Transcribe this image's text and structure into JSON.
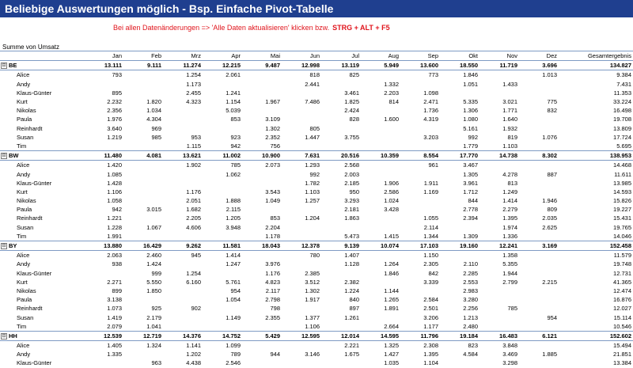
{
  "title": "Beliebige Auswertungen möglich - Bsp. Einfache Pivot-Tabelle",
  "notice": {
    "text": "Bei allen Datenänderungen => 'Alle Daten aktualisieren' klicken bzw.",
    "shortcut": "STRG + ALT + F5"
  },
  "pivot": {
    "value_label": "Summe von Umsatz",
    "columns": [
      "Jan",
      "Feb",
      "Mrz",
      "Apr",
      "Mai",
      "Jun",
      "Jul",
      "Aug",
      "Sep",
      "Okt",
      "Nov",
      "Dez",
      "Gesamtergebnis"
    ],
    "toggle_symbol": "⊟",
    "groups": [
      {
        "name": "BE",
        "totals": [
          "13.111",
          "9.111",
          "11.274",
          "12.215",
          "9.487",
          "12.998",
          "13.119",
          "5.949",
          "13.600",
          "18.550",
          "11.719",
          "3.696",
          "134.827"
        ],
        "rows": [
          {
            "name": "Alice",
            "values": [
              "793",
              "",
              "1.254",
              "2.061",
              "",
              "818",
              "825",
              "",
              "773",
              "1.846",
              "",
              "1.013",
              "9.384"
            ]
          },
          {
            "name": "Andy",
            "values": [
              "",
              "",
              "1.173",
              "",
              "",
              "2.441",
              "",
              "1.332",
              "",
              "1.051",
              "1.433",
              "",
              "7.431"
            ]
          },
          {
            "name": "Klaus-Günter",
            "values": [
              "895",
              "",
              "2.455",
              "1.241",
              "",
              "",
              "3.461",
              "2.203",
              "1.098",
              "",
              "",
              "",
              "11.353"
            ]
          },
          {
            "name": "Kurt",
            "values": [
              "2.232",
              "1.820",
              "4.323",
              "1.154",
              "1.967",
              "7.486",
              "1.825",
              "814",
              "2.471",
              "5.335",
              "3.021",
              "775",
              "33.224"
            ]
          },
          {
            "name": "Nikolas",
            "values": [
              "2.356",
              "1.034",
              "",
              "5.039",
              "",
              "",
              "2.424",
              "",
              "1.736",
              "1.306",
              "1.771",
              "832",
              "16.498"
            ]
          },
          {
            "name": "Paula",
            "values": [
              "1.976",
              "4.304",
              "",
              "853",
              "3.109",
              "",
              "828",
              "1.600",
              "4.319",
              "1.080",
              "1.640",
              "",
              "19.708"
            ]
          },
          {
            "name": "Reinhardt",
            "values": [
              "3.640",
              "969",
              "",
              "",
              "1.302",
              "805",
              "",
              "",
              "",
              "5.161",
              "1.932",
              "",
              "13.809"
            ]
          },
          {
            "name": "Susan",
            "values": [
              "1.219",
              "985",
              "953",
              "923",
              "2.352",
              "1.447",
              "3.755",
              "",
              "3.203",
              "992",
              "819",
              "1.076",
              "17.724"
            ]
          },
          {
            "name": "Tim",
            "values": [
              "",
              "",
              "1.115",
              "942",
              "756",
              "",
              "",
              "",
              "",
              "1.779",
              "1.103",
              "",
              "5.695"
            ]
          }
        ]
      },
      {
        "name": "BW",
        "totals": [
          "11.480",
          "4.081",
          "13.621",
          "11.002",
          "10.900",
          "7.631",
          "20.516",
          "10.359",
          "8.554",
          "17.770",
          "14.738",
          "8.302",
          "138.953"
        ],
        "rows": [
          {
            "name": "Alice",
            "values": [
              "1.420",
              "",
              "1.902",
              "785",
              "2.073",
              "1.293",
              "2.568",
              "",
              "961",
              "3.467",
              "",
              "",
              "14.468"
            ]
          },
          {
            "name": "Andy",
            "values": [
              "1.085",
              "",
              "",
              "1.062",
              "",
              "992",
              "2.003",
              "",
              "",
              "1.305",
              "4.278",
              "887",
              "11.611"
            ]
          },
          {
            "name": "Klaus-Günter",
            "values": [
              "1.428",
              "",
              "",
              "",
              "",
              "1.782",
              "2.185",
              "1.906",
              "1.911",
              "3.961",
              "813",
              "",
              "13.985"
            ]
          },
          {
            "name": "Kurt",
            "values": [
              "1.106",
              "",
              "1.176",
              "",
              "3.543",
              "1.103",
              "950",
              "2.586",
              "1.169",
              "1.712",
              "1.249",
              "",
              "14.593"
            ]
          },
          {
            "name": "Nikolas",
            "values": [
              "1.058",
              "",
              "2.051",
              "1.888",
              "1.049",
              "1.257",
              "3.293",
              "1.024",
              "",
              "844",
              "1.414",
              "1.946",
              "15.826"
            ]
          },
          {
            "name": "Paula",
            "values": [
              "942",
              "3.015",
              "1.682",
              "2.115",
              "",
              "",
              "2.181",
              "3.428",
              "",
              "2.778",
              "2.279",
              "809",
              "19.227"
            ]
          },
          {
            "name": "Reinhardt",
            "values": [
              "1.221",
              "",
              "2.205",
              "1.205",
              "853",
              "1.204",
              "1.863",
              "",
              "1.055",
              "2.394",
              "1.395",
              "2.035",
              "15.431"
            ]
          },
          {
            "name": "Susan",
            "values": [
              "1.228",
              "1.067",
              "4.606",
              "3.948",
              "2.204",
              "",
              "",
              "",
              "2.114",
              "",
              "1.974",
              "2.625",
              "19.765"
            ]
          },
          {
            "name": "Tim",
            "values": [
              "1.991",
              "",
              "",
              "",
              "1.178",
              "",
              "5.473",
              "1.415",
              "1.344",
              "1.309",
              "1.336",
              "",
              "14.046"
            ]
          }
        ]
      },
      {
        "name": "BY",
        "totals": [
          "13.880",
          "16.429",
          "9.262",
          "11.581",
          "18.043",
          "12.378",
          "9.139",
          "10.074",
          "17.103",
          "19.160",
          "12.241",
          "3.169",
          "152.458"
        ],
        "rows": [
          {
            "name": "Alice",
            "values": [
              "2.063",
              "2.460",
              "945",
              "1.414",
              "",
              "780",
              "1.407",
              "",
              "1.150",
              "",
              "1.358",
              "",
              "11.579"
            ]
          },
          {
            "name": "Andy",
            "values": [
              "938",
              "1.424",
              "",
              "1.247",
              "3.976",
              "",
              "1.128",
              "1.264",
              "2.305",
              "2.110",
              "5.355",
              "",
              "19.748"
            ]
          },
          {
            "name": "Klaus-Günter",
            "values": [
              "",
              "999",
              "1.254",
              "",
              "1.176",
              "2.385",
              "",
              "1.846",
              "842",
              "2.285",
              "1.944",
              "",
              "12.731"
            ]
          },
          {
            "name": "Kurt",
            "values": [
              "2.271",
              "5.550",
              "6.160",
              "5.761",
              "4.823",
              "3.512",
              "2.382",
              "",
              "3.339",
              "2.553",
              "2.799",
              "2.215",
              "41.365"
            ]
          },
          {
            "name": "Nikolas",
            "values": [
              "899",
              "1.850",
              "",
              "954",
              "2.117",
              "1.302",
              "1.224",
              "1.144",
              "",
              "2.983",
              "",
              "",
              "12.474"
            ]
          },
          {
            "name": "Paula",
            "values": [
              "3.138",
              "",
              "",
              "1.054",
              "2.798",
              "1.917",
              "840",
              "1.265",
              "2.584",
              "3.280",
              "",
              "",
              "16.876"
            ]
          },
          {
            "name": "Reinhardt",
            "values": [
              "1.073",
              "925",
              "902",
              "",
              "798",
              "",
              "897",
              "1.891",
              "2.501",
              "2.256",
              "785",
              "",
              "12.027"
            ]
          },
          {
            "name": "Susan",
            "values": [
              "1.419",
              "2.179",
              "",
              "1.149",
              "2.355",
              "1.377",
              "1.261",
              "",
              "3.206",
              "1.213",
              "",
              "954",
              "15.114"
            ]
          },
          {
            "name": "Tim",
            "values": [
              "2.079",
              "1.041",
              "",
              "",
              "",
              "1.106",
              "",
              "2.664",
              "1.177",
              "2.480",
              "",
              "",
              "10.546"
            ]
          }
        ]
      },
      {
        "name": "HH",
        "totals": [
          "12.539",
          "12.719",
          "14.376",
          "14.752",
          "5.429",
          "12.595",
          "12.014",
          "14.595",
          "11.796",
          "19.184",
          "16.483",
          "6.121",
          "152.602"
        ],
        "rows": [
          {
            "name": "Alice",
            "values": [
              "1.405",
              "1.324",
              "1.141",
              "1.099",
              "",
              "",
              "2.221",
              "1.325",
              "2.308",
              "823",
              "3.848",
              "",
              "15.494"
            ]
          },
          {
            "name": "Andy",
            "values": [
              "1.335",
              "",
              "1.202",
              "789",
              "944",
              "3.146",
              "1.675",
              "1.427",
              "1.395",
              "4.584",
              "3.469",
              "1.885",
              "21.851"
            ]
          },
          {
            "name": "Klaus-Günter",
            "values": [
              "",
              "963",
              "4.438",
              "2.546",
              "",
              "",
              "",
              "1.035",
              "1.104",
              "",
              "3.298",
              "",
              "13.384"
            ]
          }
        ]
      }
    ]
  }
}
